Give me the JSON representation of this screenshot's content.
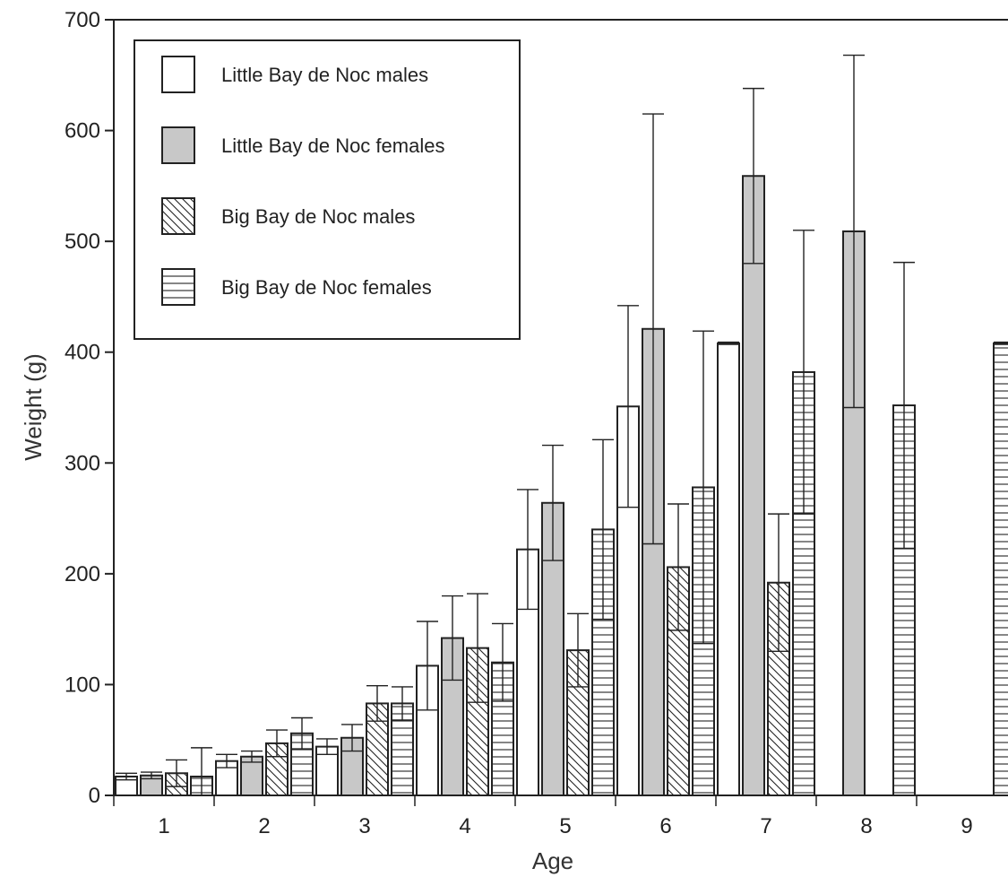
{
  "chart_data": {
    "type": "bar",
    "title": "",
    "xlabel": "Age",
    "ylabel": "Weight (g)",
    "ylim": [
      0,
      700
    ],
    "yticks": [
      "0",
      "100",
      "200",
      "300",
      "400",
      "500",
      "600",
      "700"
    ],
    "categories": [
      "1",
      "2",
      "3",
      "4",
      "5",
      "6",
      "7",
      "8",
      "9"
    ],
    "legend_position": "top-left",
    "grid": false,
    "series": [
      {
        "name": "Little Bay de Noc males",
        "fill": "none",
        "values": [
          17,
          31,
          44,
          117,
          222,
          351,
          408,
          null,
          null
        ],
        "error": [
          3,
          6,
          7,
          40,
          54,
          91,
          1,
          null,
          null
        ]
      },
      {
        "name": "Little Bay de Noc females",
        "fill": "gray",
        "values": [
          18,
          35,
          52,
          142,
          264,
          421,
          559,
          509,
          null
        ],
        "error": [
          3,
          5,
          12,
          38,
          52,
          194,
          79,
          159,
          null
        ]
      },
      {
        "name": "Big Bay de Noc males",
        "fill": "diagonal",
        "values": [
          20,
          47,
          83,
          133,
          131,
          206,
          192,
          null,
          null
        ],
        "error": [
          12,
          12,
          16,
          49,
          33,
          57,
          62,
          null,
          null
        ]
      },
      {
        "name": "Big Bay de Noc females",
        "fill": "horizontal",
        "values": [
          17,
          56,
          83,
          120,
          240,
          278,
          382,
          352,
          408
        ],
        "error": [
          26,
          14,
          15,
          35,
          81,
          141,
          128,
          129,
          1
        ]
      }
    ]
  }
}
